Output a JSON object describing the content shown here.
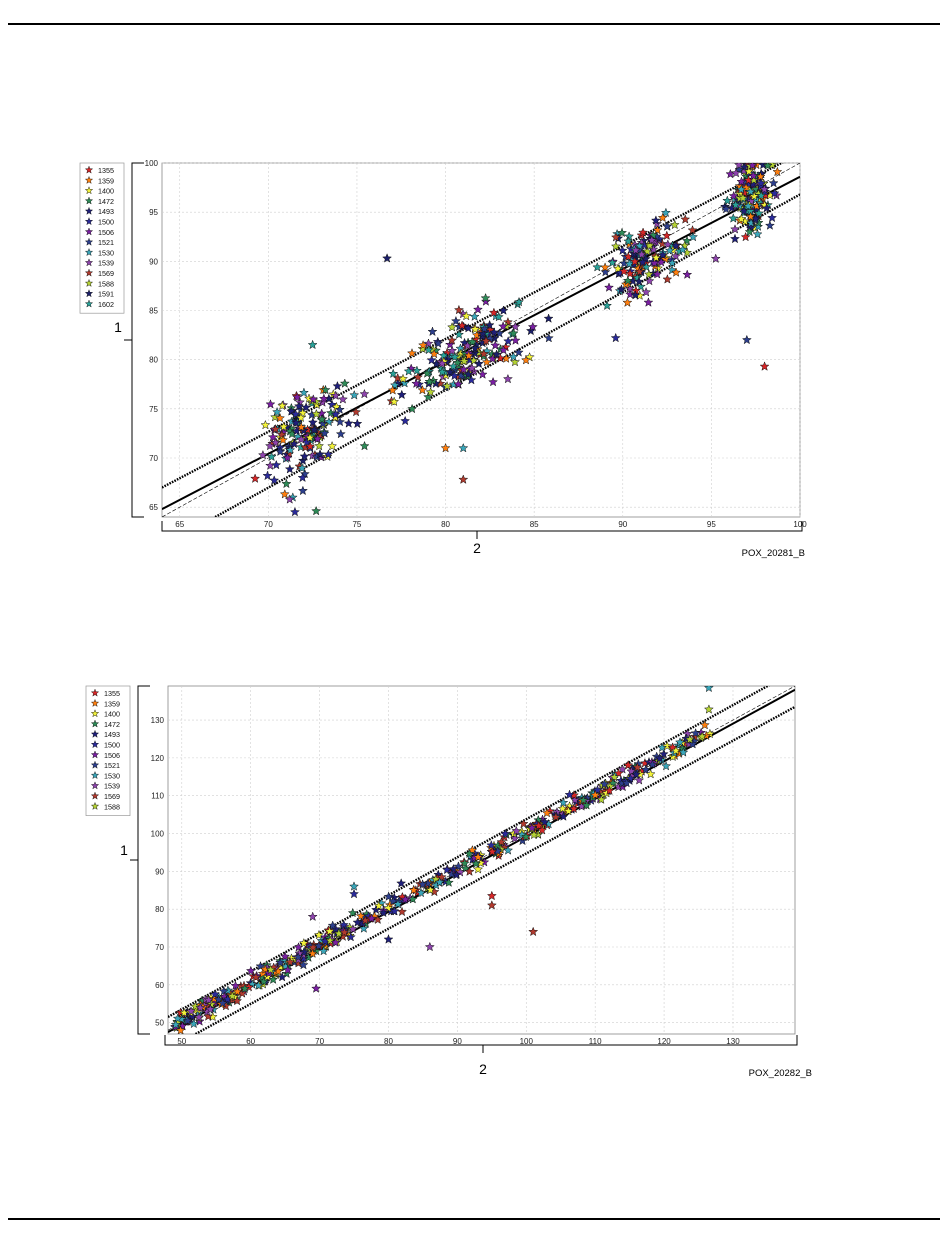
{
  "figures": [
    {
      "id": "POX_20281_B",
      "label": "POX_20281_B",
      "y_callout": "1",
      "x_callout": "2",
      "chart_data": {
        "type": "scatter",
        "title": "",
        "xlabel": "",
        "ylabel": "",
        "xlim": [
          64,
          100
        ],
        "ylim": [
          64,
          100
        ],
        "x_ticks": [
          65,
          70,
          75,
          80,
          85,
          90,
          95,
          100
        ],
        "y_ticks": [
          65,
          70,
          75,
          80,
          85,
          90,
          95,
          100
        ],
        "grid": true,
        "legend_position": "top-left-outside",
        "series": [
          {
            "name": "1355",
            "color": "#d62728"
          },
          {
            "name": "1359",
            "color": "#ff7f0e"
          },
          {
            "name": "1400",
            "color": "#f2f23a"
          },
          {
            "name": "1472",
            "color": "#2e8b57"
          },
          {
            "name": "1493",
            "color": "#1f1f7a"
          },
          {
            "name": "1500",
            "color": "#2a2a9a"
          },
          {
            "name": "1506",
            "color": "#7a1fa2"
          },
          {
            "name": "1521",
            "color": "#2c3e8c"
          },
          {
            "name": "1530",
            "color": "#3aa6b9"
          },
          {
            "name": "1539",
            "color": "#8e44ad"
          },
          {
            "name": "1569",
            "color": "#b03a2e"
          },
          {
            "name": "1588",
            "color": "#b5d334"
          },
          {
            "name": "1591",
            "color": "#1b1f6b"
          },
          {
            "name": "1602",
            "color": "#2aa198"
          }
        ],
        "clusters": [
          {
            "cx": 72,
            "cy": 72.5,
            "sx": 1.1,
            "sy": 2.2,
            "n": 160
          },
          {
            "cx": 81.5,
            "cy": 81,
            "sx": 1.4,
            "sy": 1.9,
            "n": 170
          },
          {
            "cx": 78,
            "cy": 78,
            "sx": 1.4,
            "sy": 1.8,
            "n": 30
          },
          {
            "cx": 91.5,
            "cy": 90.5,
            "sx": 1.2,
            "sy": 1.8,
            "n": 150
          },
          {
            "cx": 97.2,
            "cy": 96.5,
            "sx": 0.6,
            "sy": 1.8,
            "n": 170
          }
        ],
        "outliers": [
          {
            "x": 76.7,
            "y": 90.3
          },
          {
            "x": 80,
            "y": 71
          },
          {
            "x": 81,
            "y": 71
          },
          {
            "x": 81,
            "y": 67.8
          },
          {
            "x": 97,
            "y": 82
          },
          {
            "x": 98,
            "y": 79.3
          },
          {
            "x": 89.6,
            "y": 82.2
          },
          {
            "x": 72.5,
            "y": 81.5
          },
          {
            "x": 71.5,
            "y": 64.5
          },
          {
            "x": 72.7,
            "y": 64.6
          }
        ],
        "reference_lines": [
          {
            "kind": "fit",
            "style": "solid",
            "points": [
              [
                64,
                64.8
              ],
              [
                100,
                98.6
              ]
            ]
          },
          {
            "kind": "identity",
            "style": "thin",
            "points": [
              [
                64,
                64
              ],
              [
                100,
                100
              ]
            ]
          },
          {
            "kind": "upper-limit",
            "style": "dotted",
            "points": [
              [
                64,
                67
              ],
              [
                100,
                101
              ]
            ]
          },
          {
            "kind": "lower-limit",
            "style": "dotted",
            "points": [
              [
                67,
                64
              ],
              [
                100,
                96.8
              ]
            ]
          }
        ]
      }
    },
    {
      "id": "POX_20282_B",
      "label": "POX_20282_B",
      "y_callout": "1",
      "x_callout": "2",
      "chart_data": {
        "type": "scatter",
        "title": "",
        "xlabel": "",
        "ylabel": "",
        "xlim": [
          48,
          139
        ],
        "ylim": [
          47,
          139
        ],
        "x_ticks": [
          50,
          60,
          70,
          80,
          90,
          100,
          110,
          120,
          130
        ],
        "y_ticks": [
          50,
          60,
          70,
          80,
          90,
          100,
          110,
          120,
          130
        ],
        "grid": true,
        "legend_position": "top-left-outside",
        "series": [
          {
            "name": "1355",
            "color": "#d62728"
          },
          {
            "name": "1359",
            "color": "#ff7f0e"
          },
          {
            "name": "1400",
            "color": "#f2f23a"
          },
          {
            "name": "1472",
            "color": "#2e8b57"
          },
          {
            "name": "1493",
            "color": "#1f1f7a"
          },
          {
            "name": "1500",
            "color": "#2a2a9a"
          },
          {
            "name": "1506",
            "color": "#7a1fa2"
          },
          {
            "name": "1521",
            "color": "#2c3e8c"
          },
          {
            "name": "1530",
            "color": "#3aa6b9"
          },
          {
            "name": "1539",
            "color": "#8e44ad"
          },
          {
            "name": "1569",
            "color": "#b03a2e"
          },
          {
            "name": "1588",
            "color": "#b5d334"
          }
        ],
        "band": {
          "x_from": 49,
          "x_to": 127,
          "slope": 1.0,
          "offset": 0.5,
          "spread": 1.4,
          "n": 520
        },
        "outliers": [
          {
            "x": 126.5,
            "y": 138.5
          },
          {
            "x": 126.5,
            "y": 132.8
          },
          {
            "x": 101,
            "y": 74
          },
          {
            "x": 95,
            "y": 81
          },
          {
            "x": 95,
            "y": 83.5
          },
          {
            "x": 86,
            "y": 70
          },
          {
            "x": 69.5,
            "y": 59
          },
          {
            "x": 75,
            "y": 86
          },
          {
            "x": 75,
            "y": 84
          },
          {
            "x": 69,
            "y": 78
          },
          {
            "x": 80,
            "y": 72
          }
        ],
        "reference_lines": [
          {
            "kind": "fit",
            "style": "solid",
            "points": [
              [
                48,
                47.5
              ],
              [
                139,
                138
              ]
            ]
          },
          {
            "kind": "identity",
            "style": "thin",
            "points": [
              [
                48,
                48
              ],
              [
                139,
                139
              ]
            ]
          },
          {
            "kind": "upper-limit",
            "style": "dotted",
            "points": [
              [
                48,
                51.5
              ],
              [
                139,
                143
              ]
            ]
          },
          {
            "kind": "lower-limit",
            "style": "dotted",
            "points": [
              [
                52,
                47
              ],
              [
                139,
                133.5
              ]
            ]
          }
        ]
      }
    }
  ]
}
